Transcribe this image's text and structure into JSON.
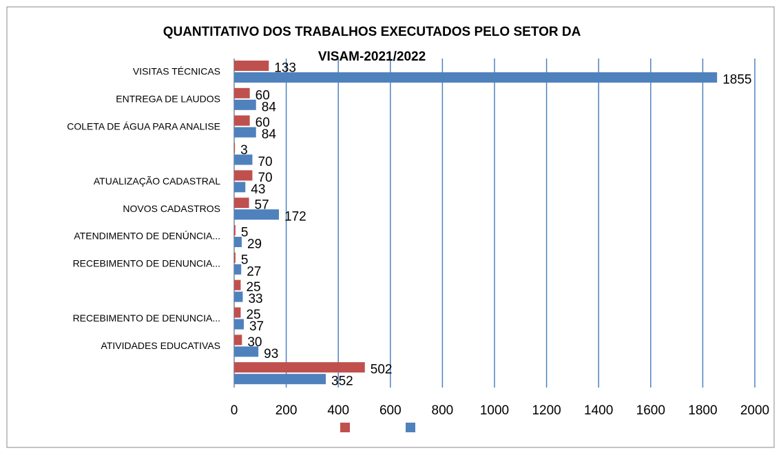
{
  "chart_data": {
    "type": "bar",
    "orientation": "horizontal",
    "title": [
      "QUANTITATIVO DOS TRABALHOS EXECUTADOS PELO SETOR DA",
      "VISAM-2021/2022"
    ],
    "categories": [
      "VISITAS TÉCNICAS",
      "ENTREGA DE LAUDOS",
      "COLETA DE ÁGUA PARA ANALISE",
      null,
      "ATUALIZAÇÃO CADASTRAL",
      "NOVOS CADASTROS",
      "ATENDIMENTO DE DENÚNCIA...",
      "RECEBIMENTO DE DENUNCIA...",
      null,
      "RECEBIMENTO DE DENUNCIA...",
      "ATIVIDADES EDUCATIVAS",
      null
    ],
    "series": [
      {
        "color": "#c0504d",
        "values": [
          133,
          60,
          60,
          3,
          70,
          57,
          5,
          5,
          25,
          25,
          30,
          502
        ]
      },
      {
        "color": "#4f81bd",
        "values": [
          1855,
          84,
          84,
          70,
          43,
          172,
          29,
          27,
          33,
          37,
          93,
          352
        ]
      }
    ],
    "xlim": [
      0,
      2000
    ],
    "xticks": [
      0,
      200,
      400,
      600,
      800,
      1000,
      1200,
      1400,
      1600,
      1800,
      2000
    ],
    "grid": true
  }
}
